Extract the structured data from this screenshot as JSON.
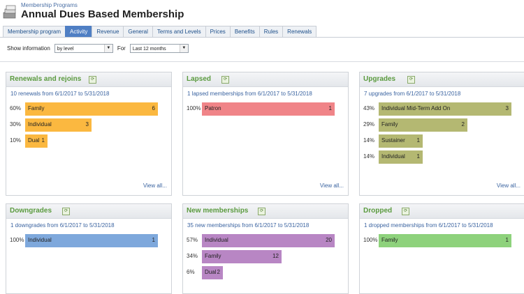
{
  "header": {
    "breadcrumb": "Membership Programs",
    "title": "Annual Dues Based Membership"
  },
  "tabs": [
    {
      "label": "Membership program",
      "active": false
    },
    {
      "label": "Activity",
      "active": true
    },
    {
      "label": "Revenue",
      "active": false
    },
    {
      "label": "General",
      "active": false
    },
    {
      "label": "Terms and Levels",
      "active": false
    },
    {
      "label": "Prices",
      "active": false
    },
    {
      "label": "Benefits",
      "active": false
    },
    {
      "label": "Rules",
      "active": false
    },
    {
      "label": "Renewals",
      "active": false
    }
  ],
  "filters": {
    "show_label": "Show information",
    "show_value": "by level",
    "for_label": "For",
    "for_value": "Last 12 months"
  },
  "panels": [
    {
      "title": "Renewals and rejoins",
      "summary": "10 renewals from 6/1/2017 to 5/31/2018",
      "color": "#fbb840",
      "max": 6,
      "view_all": "View all...",
      "rows": [
        {
          "pct": "60%",
          "label": "Family",
          "count": 6
        },
        {
          "pct": "30%",
          "label": "Individual",
          "count": 3
        },
        {
          "pct": "10%",
          "label": "Dual",
          "count": 1
        }
      ]
    },
    {
      "title": "Lapsed",
      "summary": "1 lapsed memberships from 6/1/2017 to 5/31/2018",
      "color": "#f08488",
      "max": 1,
      "view_all": "View all...",
      "rows": [
        {
          "pct": "100%",
          "label": "Patron",
          "count": 1
        }
      ]
    },
    {
      "title": "Upgrades",
      "summary": "7 upgrades from 6/1/2017 to 5/31/2018",
      "color": "#b4b872",
      "max": 3,
      "view_all": "View all...",
      "rows": [
        {
          "pct": "43%",
          "label": "Individual Mid-Term Add On",
          "count": 3
        },
        {
          "pct": "29%",
          "label": "Family",
          "count": 2
        },
        {
          "pct": "14%",
          "label": "Sustainer",
          "count": 1
        },
        {
          "pct": "14%",
          "label": "Individual",
          "count": 1
        }
      ]
    },
    {
      "title": "Downgrades",
      "summary": "1 downgrades from 6/1/2017 to 5/31/2018",
      "color": "#7ea8dc",
      "max": 1,
      "view_all": "",
      "rows": [
        {
          "pct": "100%",
          "label": "Individual",
          "count": 1
        }
      ]
    },
    {
      "title": "New memberships",
      "summary": "35 new memberships from 6/1/2017 to 5/31/2018",
      "color": "#b886c4",
      "max": 20,
      "view_all": "",
      "rows": [
        {
          "pct": "57%",
          "label": "Individual",
          "count": 20
        },
        {
          "pct": "34%",
          "label": "Family",
          "count": 12
        },
        {
          "pct": "6%",
          "label": "Dual",
          "count": 2
        }
      ]
    },
    {
      "title": "Dropped",
      "summary": "1 dropped memberships from 6/1/2017 to 5/31/2018",
      "color": "#8ed27c",
      "max": 1,
      "view_all": "",
      "rows": [
        {
          "pct": "100%",
          "label": "Family",
          "count": 1
        }
      ]
    }
  ]
}
